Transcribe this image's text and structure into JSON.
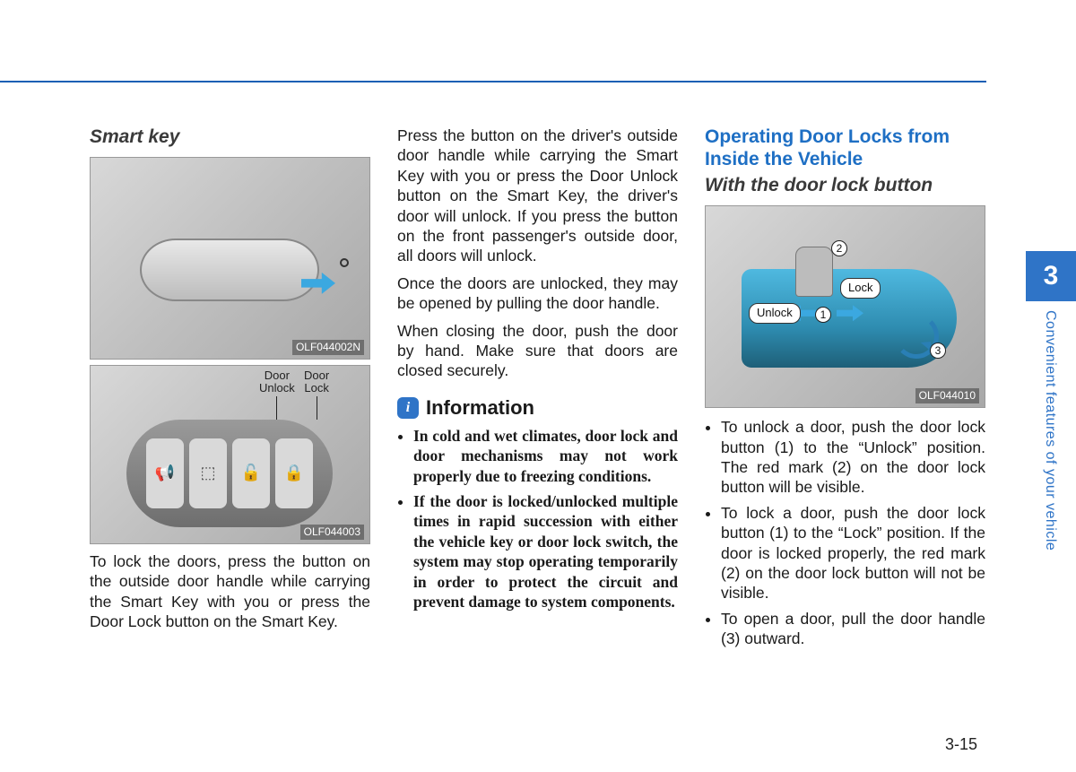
{
  "chapter": {
    "number": "3",
    "title": "Convenient features of your vehicle"
  },
  "page_number": "3-15",
  "colors": {
    "accent": "#2f74c7",
    "arrow": "#3ba8e0",
    "text": "#1a1a1a"
  },
  "col1": {
    "heading": "Smart key",
    "fig1": {
      "code": "OLF044002N"
    },
    "fig2": {
      "code": "OLF044003",
      "labels": {
        "unlock": "Door\nUnlock",
        "lock": "Door\nLock"
      }
    },
    "para1": "To lock the doors, press the button on the outside door handle while carrying the Smart Key with you or press the Door Lock button on the Smart Key."
  },
  "col2": {
    "para1": "Press the button on the driver's outside door handle while carrying the Smart Key with you or press the Door Unlock button on the Smart Key, the driver's door will unlock. If you press the button on the front passenger's outside door, all doors will unlock.",
    "para2": "Once the doors are unlocked, they may be opened by pulling the door handle.",
    "para3": "When closing the door, push the door by hand. Make sure that doors are closed securely.",
    "info_icon": "i",
    "info_title": "Information",
    "info_items": [
      "In cold and wet climates, door lock and door mechanisms may not work properly due to freezing conditions.",
      "If the door is locked/unlocked multiple times in rapid succession with either the vehicle key or door lock switch, the system may stop operating temporarily in order to protect the circuit and prevent damage to system components."
    ]
  },
  "col3": {
    "heading2": "Operating Door Locks from Inside the Vehicle",
    "heading3": "With the door lock button",
    "fig3": {
      "code": "OLF044010",
      "labels": {
        "unlock": "Unlock",
        "lock": "Lock",
        "n1": "1",
        "n2": "2",
        "n3": "3"
      }
    },
    "bullets": [
      "To unlock a door, push the door lock button (1) to the “Unlock” position. The red mark (2) on the door lock button will be visible.",
      "To lock a door, push the door lock button (1) to the “Lock” position. If the door is locked properly, the red mark (2) on the door lock button will not be visible.",
      "To open a door, pull the door handle (3) outward."
    ]
  }
}
